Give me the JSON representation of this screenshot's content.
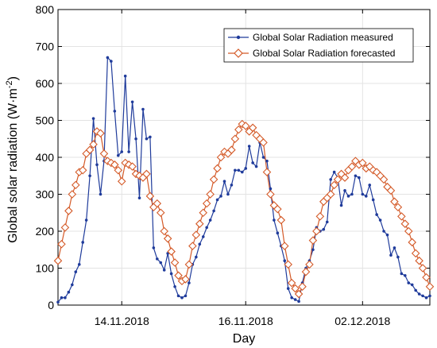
{
  "chart_data": {
    "type": "line",
    "xlabel": "Day",
    "ylabel": "Global solar radiation (W·m",
    "ylabel_sup": "-2",
    "ylabel_tail": ")",
    "ylim": [
      0,
      800
    ],
    "yticks": [
      0,
      100,
      200,
      300,
      400,
      500,
      600,
      700,
      800
    ],
    "xticks": [
      {
        "label": "14.11.2018",
        "x": 18
      },
      {
        "label": "16.11.2018",
        "x": 53
      },
      {
        "label": "02.12.2018",
        "x": 86
      }
    ],
    "xlim": [
      0,
      105
    ],
    "grid": true,
    "legend_position": "top-right",
    "series": [
      {
        "name": "Global Solar Radiation measured",
        "color": "#1f3b9b",
        "marker": "dot",
        "x": [
          0,
          1,
          2,
          3,
          4,
          5,
          6,
          7,
          8,
          9,
          10,
          11,
          12,
          13,
          14,
          15,
          16,
          17,
          18,
          19,
          20,
          21,
          22,
          23,
          24,
          25,
          26,
          27,
          28,
          29,
          30,
          31,
          32,
          33,
          34,
          35,
          36,
          37,
          38,
          39,
          40,
          41,
          42,
          43,
          44,
          45,
          46,
          47,
          48,
          49,
          50,
          51,
          52,
          53,
          54,
          55,
          56,
          57,
          58,
          59,
          60,
          61,
          62,
          63,
          64,
          65,
          66,
          67,
          68,
          69,
          70,
          71,
          72,
          73,
          74,
          75,
          76,
          77,
          78,
          79,
          80,
          81,
          82,
          83,
          84,
          85,
          86,
          87,
          88,
          89,
          90,
          91,
          92,
          93,
          94,
          95,
          96,
          97,
          98,
          99,
          100,
          101,
          102,
          103,
          104,
          105
        ],
        "values": [
          8,
          20,
          20,
          35,
          55,
          90,
          110,
          170,
          230,
          350,
          505,
          380,
          300,
          390,
          670,
          660,
          525,
          405,
          415,
          620,
          415,
          550,
          450,
          290,
          530,
          450,
          455,
          155,
          125,
          115,
          95,
          140,
          85,
          50,
          25,
          20,
          25,
          60,
          110,
          130,
          165,
          185,
          210,
          230,
          255,
          285,
          295,
          335,
          300,
          325,
          365,
          365,
          360,
          370,
          430,
          385,
          375,
          440,
          400,
          390,
          315,
          230,
          195,
          160,
          120,
          45,
          20,
          15,
          10,
          60,
          100,
          120,
          150,
          210,
          200,
          205,
          225,
          340,
          360,
          345,
          270,
          310,
          295,
          300,
          350,
          345,
          300,
          295,
          325,
          285,
          245,
          230,
          200,
          190,
          135,
          155,
          130,
          85,
          80,
          60,
          55,
          40,
          30,
          25,
          20,
          25
        ]
      },
      {
        "name": "Global Solar Radiation forecasted",
        "color": "#d45a28",
        "marker": "diamond",
        "x": [
          0,
          1,
          2,
          3,
          4,
          5,
          6,
          7,
          8,
          9,
          10,
          11,
          12,
          13,
          14,
          15,
          16,
          17,
          18,
          19,
          20,
          21,
          22,
          23,
          24,
          25,
          26,
          27,
          28,
          29,
          30,
          31,
          32,
          33,
          34,
          35,
          36,
          37,
          38,
          39,
          40,
          41,
          42,
          43,
          44,
          45,
          46,
          47,
          48,
          49,
          50,
          51,
          52,
          53,
          54,
          55,
          56,
          57,
          58,
          59,
          60,
          61,
          62,
          63,
          64,
          65,
          66,
          67,
          68,
          69,
          70,
          71,
          72,
          73,
          74,
          75,
          76,
          77,
          78,
          79,
          80,
          81,
          82,
          83,
          84,
          85,
          86,
          87,
          88,
          89,
          90,
          91,
          92,
          93,
          94,
          95,
          96,
          97,
          98,
          99,
          100,
          101,
          102,
          103,
          104,
          105
        ],
        "values": [
          120,
          165,
          210,
          255,
          300,
          325,
          360,
          365,
          410,
          420,
          435,
          470,
          465,
          410,
          390,
          385,
          380,
          365,
          335,
          385,
          380,
          375,
          355,
          350,
          345,
          355,
          295,
          265,
          275,
          250,
          200,
          180,
          145,
          115,
          80,
          65,
          70,
          110,
          160,
          190,
          220,
          250,
          275,
          300,
          340,
          370,
          400,
          415,
          410,
          420,
          450,
          475,
          490,
          485,
          470,
          480,
          460,
          450,
          440,
          360,
          300,
          270,
          260,
          230,
          160,
          110,
          60,
          45,
          30,
          50,
          90,
          110,
          175,
          200,
          240,
          280,
          290,
          300,
          325,
          340,
          355,
          345,
          365,
          375,
          390,
          380,
          385,
          370,
          375,
          365,
          360,
          350,
          340,
          320,
          310,
          280,
          265,
          240,
          220,
          200,
          170,
          140,
          120,
          100,
          75,
          50
        ]
      }
    ]
  }
}
